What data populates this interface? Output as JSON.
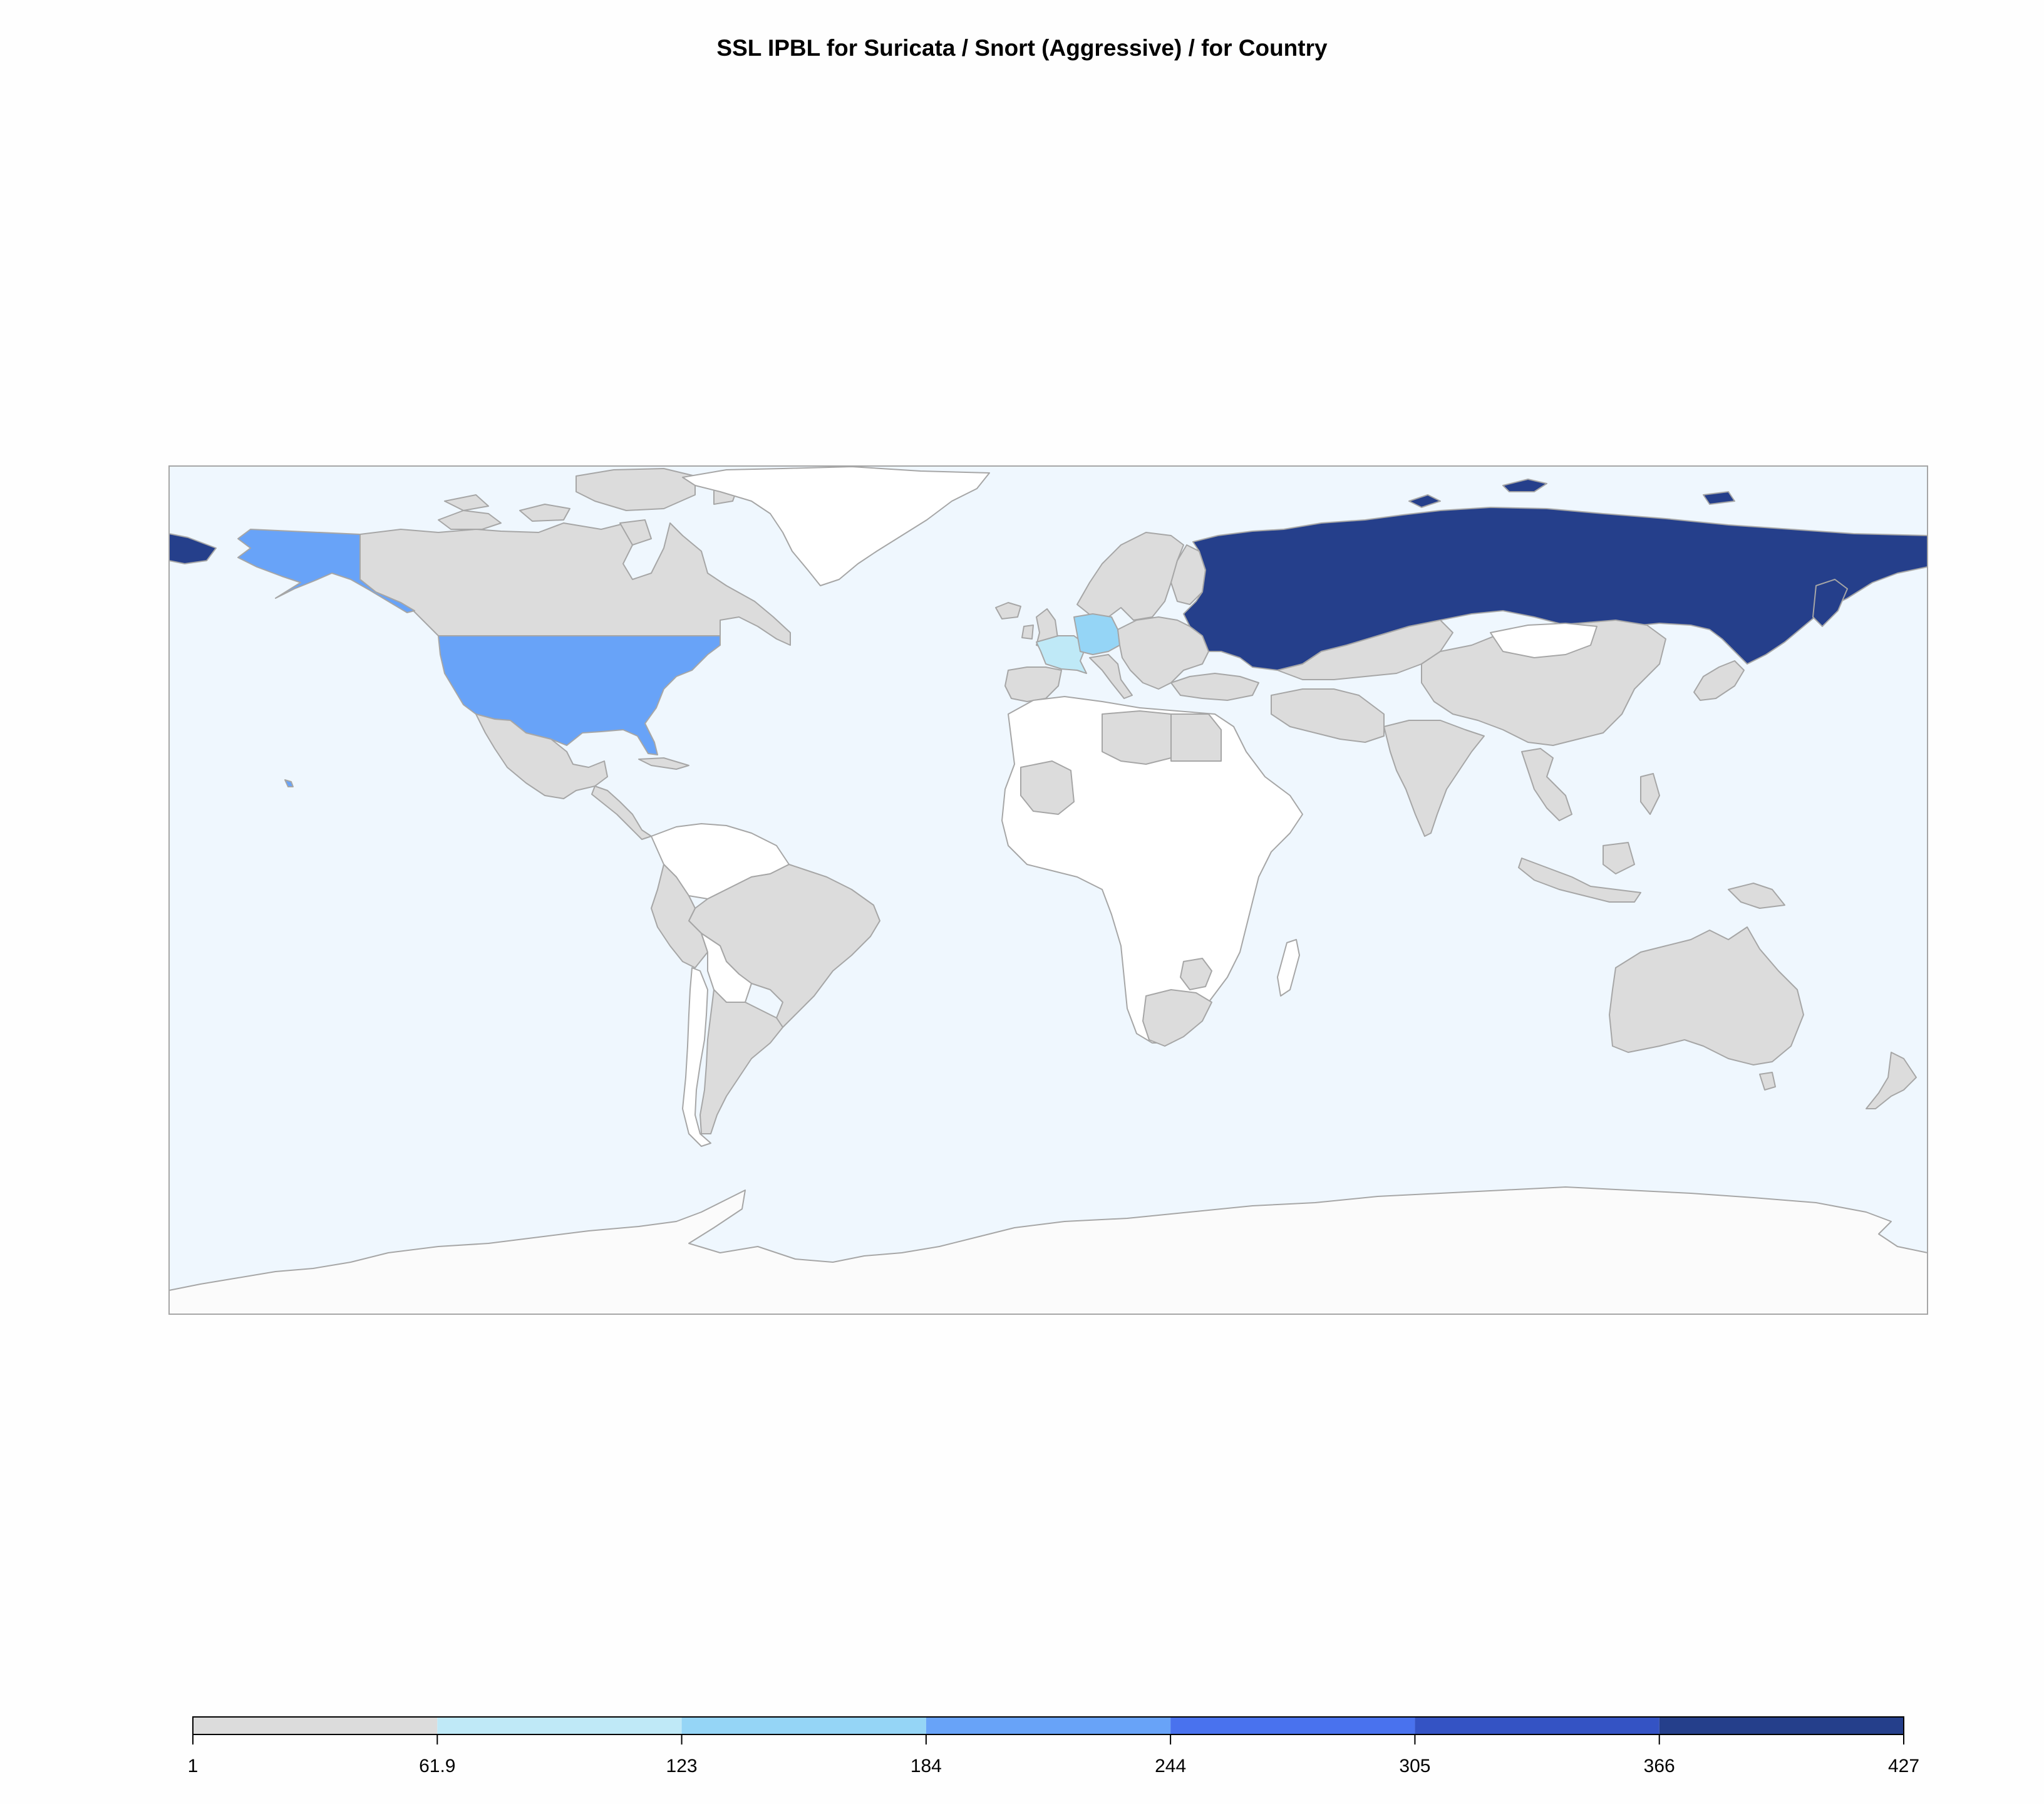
{
  "title": "SSL IPBL for Suricata / Snort (Aggressive) / for Country",
  "colors": {
    "ocean": "#eff7fe",
    "no_data": "#ffffff",
    "antarctica": "#fbfbfb",
    "border": "#a6a6a6"
  },
  "legend": {
    "breaks": [
      "1",
      "61.9",
      "123",
      "184",
      "244",
      "305",
      "366",
      "427"
    ],
    "colors": [
      "#dcdcdc",
      "#bfe9f7",
      "#95d5f6",
      "#68a3f8",
      "#4972ee",
      "#3453c4",
      "#253f8b"
    ]
  },
  "map_data": {
    "scale_min": 1,
    "scale_max": 427,
    "class_colors": {
      "Russia": "#253f8b",
      "United States": "#68a3f8",
      "Germany": "#95d5f6",
      "France": "#bfe9f7"
    },
    "low_value_countries": [
      "Canada",
      "Mexico",
      "Brazil",
      "Argentina",
      "Peru",
      "Colombia",
      "Venezuela",
      "Spain",
      "United Kingdom",
      "Ireland",
      "Norway",
      "Sweden",
      "Finland",
      "Poland",
      "Italy",
      "Ukraine",
      "Turkey",
      "Kazakhstan",
      "China",
      "India",
      "Japan",
      "South Korea",
      "Iran",
      "Pakistan",
      "Vietnam",
      "Thailand",
      "Indonesia",
      "Philippines",
      "Australia",
      "South Africa",
      "Libya",
      "Egypt",
      "Mali",
      "Zimbabwe",
      "New Zealand"
    ]
  }
}
